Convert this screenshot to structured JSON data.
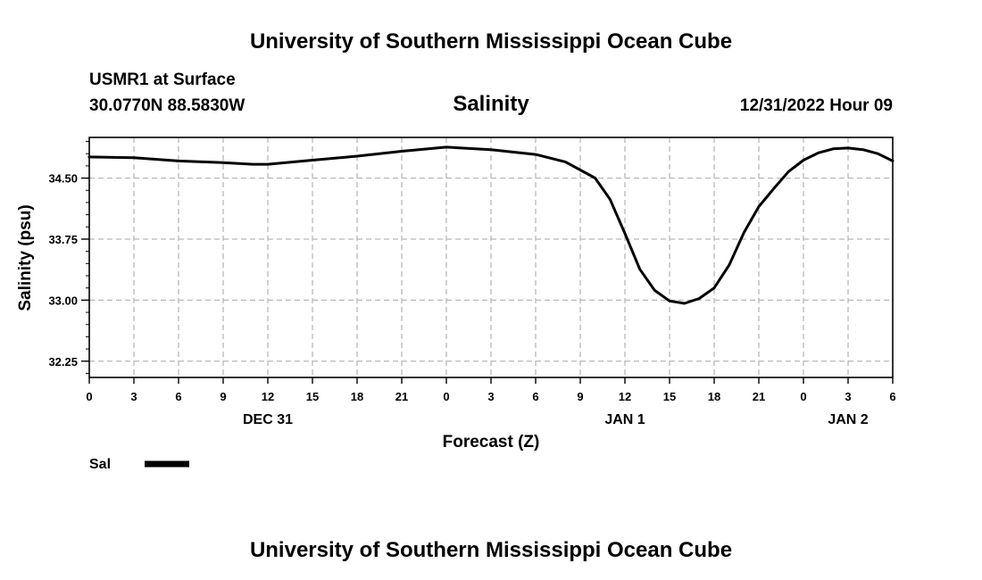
{
  "header": {
    "title_top": "University of Southern Mississippi Ocean Cube",
    "station": "USMR1 at Surface",
    "coords": "30.0770N  88.5830W",
    "variable": "Salinity",
    "timestamp": "12/31/2022 Hour 09"
  },
  "footer": {
    "title_bottom": "University of Southern Mississippi Ocean Cube"
  },
  "legend": {
    "label": "Sal"
  },
  "chart_data": {
    "type": "line",
    "title": "Salinity",
    "xlabel": "Forecast (Z)",
    "ylabel": "Salinity (psu)",
    "x_unit": "hours from 12/31/2022 00Z",
    "xlim": [
      0,
      54
    ],
    "ylim": [
      32.05,
      35.0
    ],
    "y_ticks": [
      32.25,
      33.0,
      33.75,
      34.5
    ],
    "y_tick_labels": [
      "32.25",
      "33.00",
      "33.75",
      "34.50"
    ],
    "x_ticks": [
      0,
      3,
      6,
      9,
      12,
      15,
      18,
      21,
      24,
      27,
      30,
      33,
      36,
      39,
      42,
      45,
      48,
      51,
      54
    ],
    "x_tick_labels": [
      "0",
      "3",
      "6",
      "9",
      "12",
      "15",
      "18",
      "21",
      "0",
      "3",
      "6",
      "9",
      "12",
      "15",
      "18",
      "21",
      "0",
      "3",
      "6"
    ],
    "date_labels": [
      {
        "x": 12,
        "label": "DEC 31"
      },
      {
        "x": 36,
        "label": "JAN 1"
      },
      {
        "x": 51,
        "label": "JAN 2"
      }
    ],
    "grid": true,
    "legend_position": "bottom-left",
    "series": [
      {
        "name": "Sal",
        "x": [
          0,
          3,
          6,
          9,
          11,
          12,
          15,
          18,
          21,
          24,
          27,
          30,
          32,
          33,
          34,
          35,
          36,
          37,
          38,
          39,
          40,
          41,
          42,
          43,
          44,
          45,
          46,
          47,
          48,
          49,
          50,
          51,
          52,
          53,
          54
        ],
        "values": [
          34.76,
          34.75,
          34.71,
          34.69,
          34.67,
          34.67,
          34.72,
          34.77,
          34.83,
          34.88,
          34.85,
          34.79,
          34.7,
          34.6,
          34.5,
          34.24,
          33.82,
          33.38,
          33.12,
          32.99,
          32.96,
          33.02,
          33.15,
          33.43,
          33.83,
          34.15,
          34.37,
          34.58,
          34.72,
          34.81,
          34.86,
          34.87,
          34.85,
          34.8,
          34.71
        ]
      }
    ]
  }
}
